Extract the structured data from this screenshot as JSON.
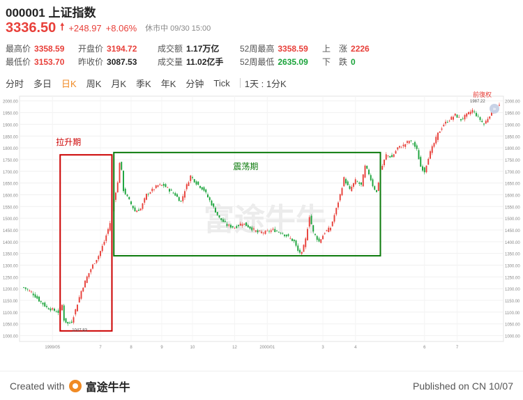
{
  "header": {
    "code_title": "000001 上证指数",
    "price": "3336.50",
    "change": "+248.97",
    "change_pct": "+8.06%",
    "status": "休市中  09/30 15:00"
  },
  "stats": [
    [
      {
        "label": "最高价",
        "value": "3358.59",
        "color": "red"
      },
      {
        "label": "开盘价",
        "value": "3194.72",
        "color": "red"
      },
      {
        "label": "成交额",
        "value": "1.17万亿",
        "color": "dark"
      },
      {
        "label": "52周最高",
        "value": "3358.59",
        "color": "red"
      },
      {
        "label": "上　涨",
        "value": "2226",
        "color": "red"
      }
    ],
    [
      {
        "label": "最低价",
        "value": "3153.70",
        "color": "red"
      },
      {
        "label": "昨收价",
        "value": "3087.53",
        "color": "dark"
      },
      {
        "label": "成交量",
        "value": "11.02亿手",
        "color": "dark"
      },
      {
        "label": "52周最低",
        "value": "2635.09",
        "color": "green"
      },
      {
        "label": "下　跌",
        "value": "0",
        "color": "green"
      }
    ]
  ],
  "tabs": [
    "分时",
    "多日",
    "日K",
    "周K",
    "月K",
    "季K",
    "年K",
    "分钟",
    "Tick"
  ],
  "active_tab": "日K",
  "period_select": "1天 : 1分K",
  "footer": {
    "created_with": "Created with",
    "brand": "富途牛牛",
    "published": "Published on CN 10/07"
  },
  "colors": {
    "up": "#e8403a",
    "down": "#1aa33a",
    "annotation_red": "#cc0000",
    "annotation_green": "#0b7a0b"
  },
  "chart_data": {
    "type": "candlestick",
    "ylim": [
      975,
      2020
    ],
    "y_ticks": [
      "1000.00",
      "1050.00",
      "1100.00",
      "1150.00",
      "1200.00",
      "1250.00",
      "1300.00",
      "1350.00",
      "1400.00",
      "1450.00",
      "1500.00",
      "1550.00",
      "1600.00",
      "1650.00",
      "1700.00",
      "1750.00",
      "1800.00",
      "1850.00",
      "1900.00",
      "1950.00",
      "2000.00"
    ],
    "x_ticks": [
      "1999/05",
      "7",
      "8",
      "9",
      "10",
      "12",
      "2000/01",
      "3",
      "4",
      "6",
      "7"
    ],
    "watermark": "富途牛牛",
    "controls": {
      "reset_label": "前復权",
      "nav_icon": "»"
    },
    "annotations": [
      {
        "label": "拉升期",
        "color": "red",
        "x_range": [
          "1999/05",
          "7"
        ],
        "y_range": [
          1020,
          1770
        ]
      },
      {
        "label": "震荡期",
        "color": "green",
        "x_range": [
          "7",
          "3"
        ],
        "y_range": [
          1340,
          1780
        ]
      }
    ],
    "low_label": "1047.83",
    "high_label": "1987.22",
    "anchors": [
      [
        0,
        1205
      ],
      [
        4,
        1185
      ],
      [
        8,
        1150
      ],
      [
        12,
        1120
      ],
      [
        15,
        1110
      ],
      [
        18,
        1100
      ],
      [
        20,
        1130
      ],
      [
        21,
        1068
      ],
      [
        23,
        1050
      ],
      [
        25,
        1060
      ],
      [
        27,
        1110
      ],
      [
        30,
        1190
      ],
      [
        33,
        1250
      ],
      [
        36,
        1300
      ],
      [
        39,
        1340
      ],
      [
        42,
        1400
      ],
      [
        45,
        1480
      ],
      [
        47,
        1580
      ],
      [
        49,
        1650
      ],
      [
        50,
        1740
      ],
      [
        51,
        1700
      ],
      [
        52,
        1620
      ],
      [
        54,
        1590
      ],
      [
        56,
        1560
      ],
      [
        58,
        1530
      ],
      [
        61,
        1540
      ],
      [
        64,
        1600
      ],
      [
        67,
        1620
      ],
      [
        70,
        1640
      ],
      [
        73,
        1640
      ],
      [
        76,
        1620
      ],
      [
        79,
        1600
      ],
      [
        82,
        1570
      ],
      [
        84,
        1620
      ],
      [
        87,
        1680
      ],
      [
        90,
        1650
      ],
      [
        94,
        1620
      ],
      [
        98,
        1560
      ],
      [
        102,
        1500
      ],
      [
        106,
        1470
      ],
      [
        110,
        1460
      ],
      [
        114,
        1480
      ],
      [
        118,
        1460
      ],
      [
        122,
        1440
      ],
      [
        126,
        1440
      ],
      [
        130,
        1450
      ],
      [
        134,
        1440
      ],
      [
        138,
        1420
      ],
      [
        141,
        1400
      ],
      [
        143,
        1360
      ],
      [
        145,
        1350
      ],
      [
        147,
        1410
      ],
      [
        149,
        1510
      ],
      [
        151,
        1440
      ],
      [
        154,
        1400
      ],
      [
        157,
        1440
      ],
      [
        160,
        1460
      ],
      [
        163,
        1540
      ],
      [
        165,
        1600
      ],
      [
        167,
        1670
      ],
      [
        170,
        1620
      ],
      [
        173,
        1660
      ],
      [
        176,
        1640
      ],
      [
        178,
        1720
      ],
      [
        180,
        1690
      ],
      [
        182,
        1640
      ],
      [
        184,
        1610
      ],
      [
        186,
        1700
      ],
      [
        189,
        1770
      ],
      [
        192,
        1760
      ],
      [
        195,
        1800
      ],
      [
        198,
        1810
      ],
      [
        201,
        1830
      ],
      [
        203,
        1820
      ],
      [
        205,
        1790
      ],
      [
        207,
        1720
      ],
      [
        209,
        1700
      ],
      [
        211,
        1760
      ],
      [
        213,
        1800
      ],
      [
        216,
        1860
      ],
      [
        219,
        1900
      ],
      [
        222,
        1920
      ],
      [
        225,
        1940
      ],
      [
        228,
        1920
      ],
      [
        231,
        1940
      ],
      [
        234,
        1960
      ],
      [
        237,
        1930
      ],
      [
        240,
        1900
      ],
      [
        243,
        1940
      ],
      [
        246,
        1970
      ],
      [
        248,
        1980
      ]
    ]
  }
}
